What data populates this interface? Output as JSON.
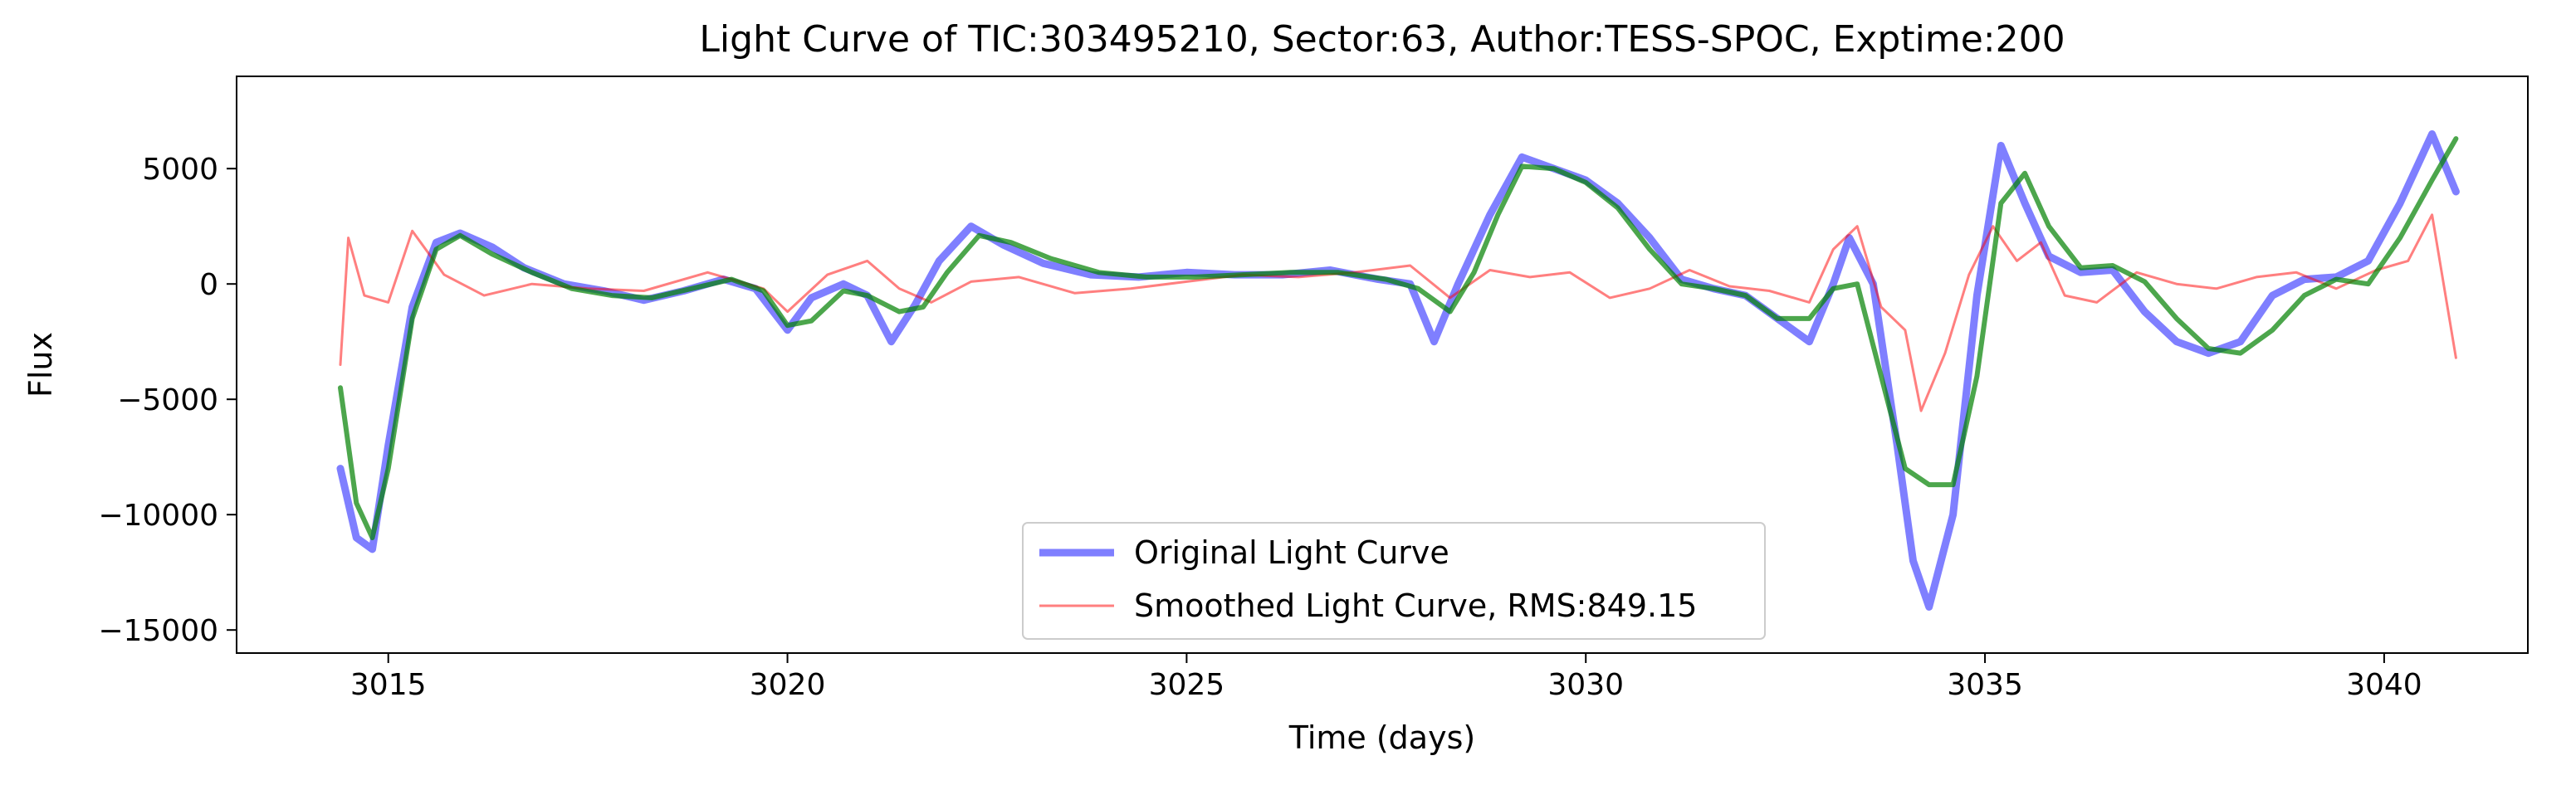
{
  "chart_data": {
    "type": "line",
    "title": "Light Curve of TIC:303495210, Sector:63, Author:TESS-SPOC, Exptime:200",
    "xlabel": "Time (days)",
    "ylabel": "Flux",
    "xlim": [
      3013.1,
      3041.8
    ],
    "ylim": [
      -16000,
      9000
    ],
    "xticks": [
      3015,
      3020,
      3025,
      3030,
      3035,
      3040
    ],
    "yticks": [
      -15000,
      -10000,
      -5000,
      0,
      5000
    ],
    "ytick_labels": [
      "−15000",
      "−10000",
      "−5000",
      "0",
      "5000"
    ],
    "grid": false,
    "legend_position": "bottom-center",
    "series": [
      {
        "name": "Original Light Curve",
        "color": "#0000ff",
        "alpha": 0.5,
        "x": [
          3014.4,
          3014.6,
          3014.8,
          3015.0,
          3015.3,
          3015.6,
          3015.9,
          3016.3,
          3016.7,
          3017.2,
          3017.7,
          3018.2,
          3018.7,
          3019.2,
          3019.6,
          3020.0,
          3020.3,
          3020.7,
          3021.0,
          3021.3,
          3021.6,
          3021.9,
          3022.3,
          3022.7,
          3023.2,
          3023.8,
          3024.4,
          3025.0,
          3025.6,
          3026.2,
          3026.8,
          3027.4,
          3027.8,
          3028.1,
          3028.4,
          3028.8,
          3029.2,
          3029.6,
          3030.0,
          3030.4,
          3030.8,
          3031.2,
          3031.6,
          3032.0,
          3032.4,
          3032.8,
          3033.1,
          3033.3,
          3033.6,
          3033.9,
          3034.1,
          3034.3,
          3034.6,
          3034.9,
          3035.2,
          3035.5,
          3035.8,
          3036.2,
          3036.6,
          3037.0,
          3037.4,
          3037.8,
          3038.2,
          3038.6,
          3039.0,
          3039.4,
          3039.8,
          3040.2,
          3040.6,
          3040.9
        ],
        "y": [
          -8000,
          -11000,
          -11500,
          -7000,
          -1000,
          1800,
          2200,
          1600,
          700,
          0,
          -300,
          -700,
          -300,
          200,
          -200,
          -2000,
          -600,
          0,
          -500,
          -2500,
          -900,
          1000,
          2500,
          1700,
          900,
          400,
          300,
          500,
          400,
          400,
          600,
          200,
          0,
          -2500,
          0,
          3000,
          5500,
          5000,
          4500,
          3500,
          2000,
          200,
          -200,
          -500,
          -1500,
          -2500,
          0,
          2000,
          0,
          -7000,
          -12000,
          -14000,
          -10000,
          -500,
          6000,
          3500,
          1200,
          500,
          600,
          -1200,
          -2500,
          -3000,
          -2500,
          -500,
          200,
          300,
          1000,
          3500,
          6500,
          4000
        ]
      },
      {
        "name": "Smoothed Light Curve, RMS:849.15",
        "color": "#ff0000",
        "alpha": 0.5,
        "x": [
          3014.4,
          3014.5,
          3014.7,
          3015.0,
          3015.3,
          3015.7,
          3016.2,
          3016.8,
          3017.5,
          3018.2,
          3019.0,
          3019.7,
          3020.0,
          3020.5,
          3021.0,
          3021.4,
          3021.8,
          3022.3,
          3022.9,
          3023.6,
          3024.3,
          3025.0,
          3025.7,
          3026.4,
          3027.1,
          3027.8,
          3028.3,
          3028.8,
          3029.3,
          3029.8,
          3030.3,
          3030.8,
          3031.3,
          3031.8,
          3032.3,
          3032.8,
          3033.1,
          3033.4,
          3033.7,
          3034.0,
          3034.2,
          3034.5,
          3034.8,
          3035.1,
          3035.4,
          3035.7,
          3036.0,
          3036.4,
          3036.9,
          3037.4,
          3037.9,
          3038.4,
          3038.9,
          3039.4,
          3039.9,
          3040.3,
          3040.6,
          3040.9
        ],
        "y": [
          -3500,
          2000,
          -500,
          -800,
          2300,
          400,
          -500,
          0,
          -200,
          -300,
          500,
          -200,
          -1200,
          400,
          1000,
          -200,
          -800,
          100,
          300,
          -400,
          -200,
          100,
          400,
          300,
          500,
          800,
          -600,
          600,
          300,
          500,
          -600,
          -200,
          600,
          -100,
          -300,
          -800,
          1500,
          2500,
          -1000,
          -2000,
          -5500,
          -3000,
          400,
          2500,
          1000,
          1800,
          -500,
          -800,
          500,
          0,
          -200,
          300,
          500,
          -200,
          600,
          1000,
          3000,
          -3200
        ]
      },
      {
        "name": "",
        "color": "#008000",
        "alpha": 0.7,
        "x": [
          3014.4,
          3014.6,
          3014.8,
          3015.0,
          3015.3,
          3015.6,
          3015.9,
          3016.3,
          3016.8,
          3017.3,
          3017.8,
          3018.3,
          3018.8,
          3019.3,
          3019.7,
          3020.0,
          3020.3,
          3020.7,
          3021.0,
          3021.4,
          3021.7,
          3022.0,
          3022.4,
          3022.8,
          3023.3,
          3023.9,
          3024.5,
          3025.1,
          3025.7,
          3026.3,
          3026.9,
          3027.5,
          3027.9,
          3028.3,
          3028.6,
          3028.9,
          3029.2,
          3029.6,
          3030.0,
          3030.4,
          3030.8,
          3031.2,
          3031.6,
          3032.0,
          3032.4,
          3032.8,
          3033.1,
          3033.4,
          3033.7,
          3034.0,
          3034.3,
          3034.6,
          3034.9,
          3035.2,
          3035.5,
          3035.8,
          3036.2,
          3036.6,
          3037.0,
          3037.4,
          3037.8,
          3038.2,
          3038.6,
          3039.0,
          3039.4,
          3039.8,
          3040.2,
          3040.6,
          3040.9
        ],
        "y": [
          -4500,
          -9500,
          -11000,
          -8000,
          -1500,
          1500,
          2100,
          1300,
          500,
          -200,
          -500,
          -600,
          -200,
          200,
          -300,
          -1800,
          -1600,
          -300,
          -500,
          -1200,
          -1000,
          500,
          2100,
          1800,
          1100,
          500,
          300,
          300,
          400,
          500,
          500,
          200,
          -200,
          -1200,
          500,
          3000,
          5100,
          5000,
          4400,
          3300,
          1500,
          0,
          -200,
          -500,
          -1500,
          -1500,
          -200,
          0,
          -4000,
          -8000,
          -8700,
          -8700,
          -4000,
          3500,
          4800,
          2500,
          700,
          800,
          100,
          -1500,
          -2800,
          -3000,
          -2000,
          -500,
          200,
          0,
          2000,
          4500,
          6300
        ]
      }
    ]
  }
}
